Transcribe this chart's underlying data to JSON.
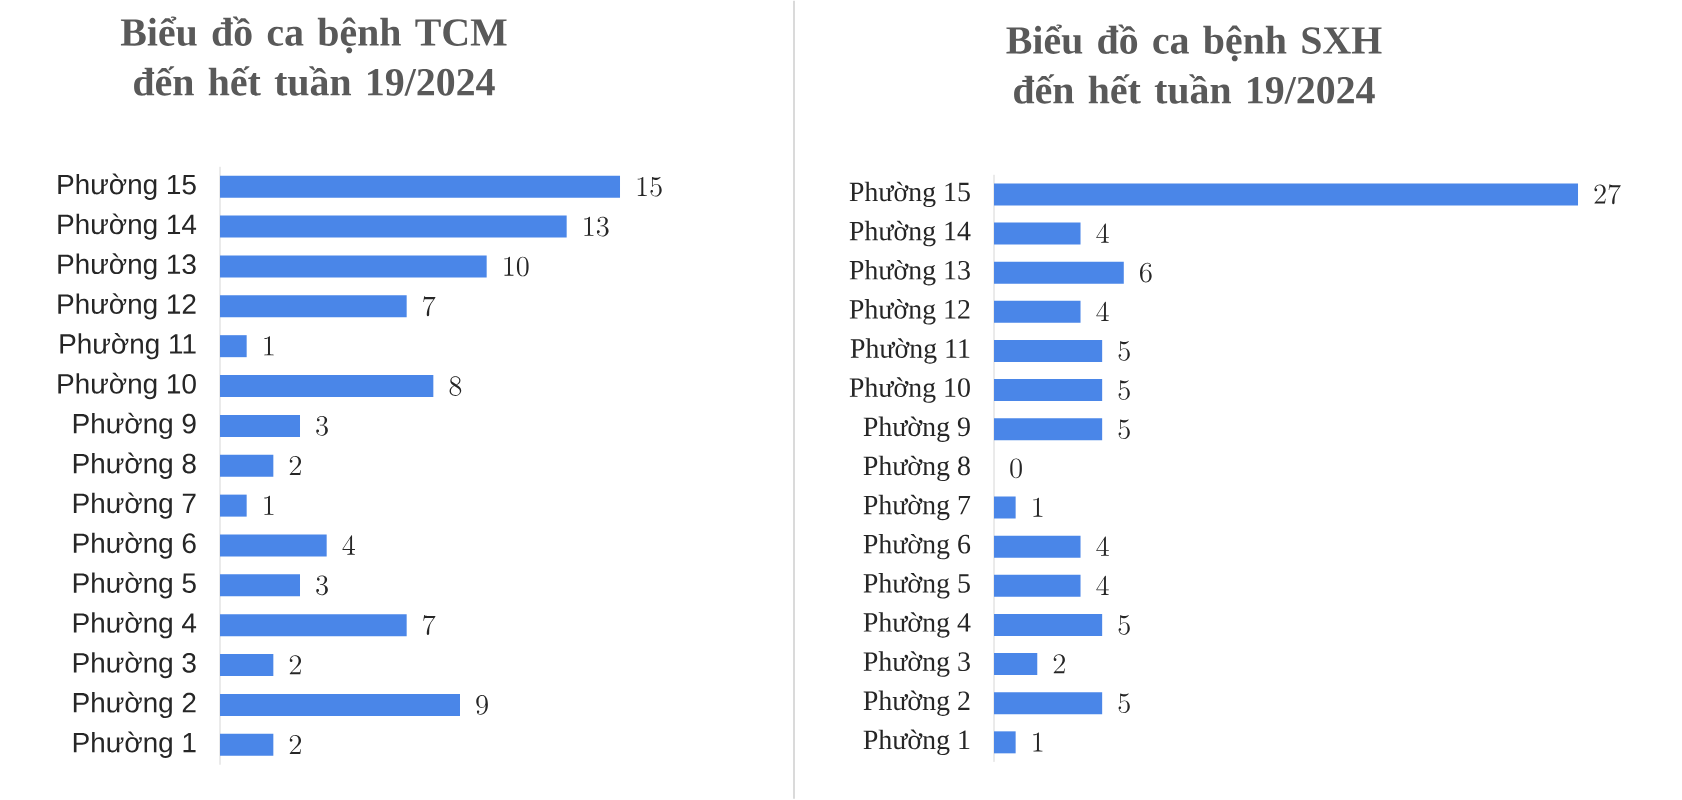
{
  "chart_data": [
    {
      "type": "bar",
      "orientation": "horizontal",
      "title": "Biểu đồ ca bệnh TCM đến hết tuần 19/2024",
      "categories": [
        "Phường 15",
        "Phường 14",
        "Phường 13",
        "Phường 12",
        "Phường 11",
        "Phường 10",
        "Phường 9",
        "Phường 8",
        "Phường 7",
        "Phường 6",
        "Phường 5",
        "Phường 4",
        "Phường 3",
        "Phường 2",
        "Phường 1"
      ],
      "values": [
        15,
        13,
        10,
        7,
        1,
        8,
        3,
        2,
        1,
        4,
        3,
        7,
        2,
        9,
        2
      ],
      "color": "#4a86e8",
      "data_labels": true
    },
    {
      "type": "bar",
      "orientation": "horizontal",
      "title": "Biểu đồ ca bệnh SXH đến hết tuần 19/2024",
      "categories": [
        "Phường 15",
        "Phường 14",
        "Phường 13",
        "Phường 12",
        "Phường 11",
        "Phường 10",
        "Phường 9",
        "Phường 8",
        "Phường 7",
        "Phường 6",
        "Phường 5",
        "Phường 4",
        "Phường 3",
        "Phường 2",
        "Phường 1"
      ],
      "values": [
        27,
        4,
        6,
        4,
        5,
        5,
        5,
        0,
        1,
        4,
        4,
        5,
        2,
        5,
        1
      ],
      "color": "#4a86e8",
      "data_labels": true
    }
  ]
}
